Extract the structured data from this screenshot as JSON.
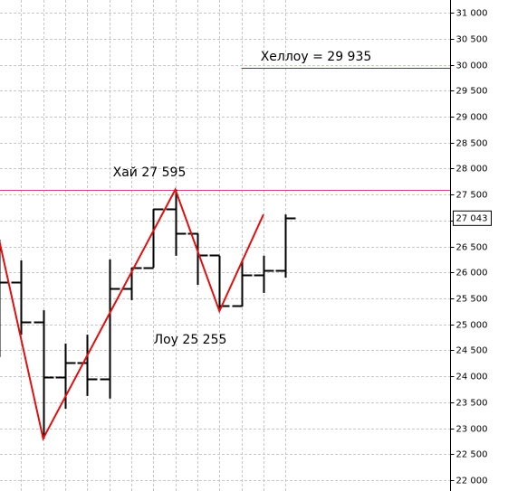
{
  "chart_data": {
    "type": "ohlc",
    "categories": [
      null,
      null,
      null,
      null,
      null,
      null,
      null,
      null,
      null,
      null,
      null,
      null,
      null,
      null
    ],
    "series": [
      {
        "color": "#000000",
        "open": [
          null,
          25810,
          25045,
          23980,
          24260,
          23950,
          25690,
          26090,
          27220,
          26750,
          26335,
          25360,
          25950,
          26035
        ],
        "high": [
          26630,
          26230,
          25270,
          24630,
          24800,
          26250,
          26090,
          27220,
          27595,
          26750,
          26320,
          26230,
          26320,
          27115
        ],
        "low": [
          24370,
          24800,
          22800,
          23375,
          23620,
          23570,
          25465,
          26090,
          26320,
          25760,
          25255,
          25340,
          25605,
          25900
        ],
        "close": [
          25810,
          25045,
          23980,
          24260,
          23950,
          25690,
          26090,
          27220,
          26750,
          26335,
          25360,
          25950,
          26035,
          27043
        ]
      }
    ],
    "zigzag": {
      "color": "#e01010",
      "x": [
        0,
        2,
        8,
        10,
        12
      ],
      "values": [
        26630,
        22800,
        27595,
        25255,
        27115
      ]
    },
    "levels": [
      {
        "value": 27595,
        "color": "#d2408a",
        "from": 0
      },
      {
        "value": 29935,
        "color": "#c0142a",
        "from": 11
      }
    ],
    "annotations": [
      "Хай 27 595",
      "Хеллоу = 29 935",
      "Лоу 25 255"
    ],
    "last_price": {
      "value": 27043,
      "label": "27 043"
    },
    "ylim": [
      21790,
      31245
    ],
    "yticks": [
      {
        "value": 22000,
        "label": "22 000"
      },
      {
        "value": 22500,
        "label": "22 500"
      },
      {
        "value": 23000,
        "label": "23 000"
      },
      {
        "value": 23500,
        "label": "23 500"
      },
      {
        "value": 24000,
        "label": "24 000"
      },
      {
        "value": 24500,
        "label": "24 500"
      },
      {
        "value": 25000,
        "label": "25 000"
      },
      {
        "value": 25500,
        "label": "25 500"
      },
      {
        "value": 26000,
        "label": "26 000"
      },
      {
        "value": 26500,
        "label": "26 500"
      },
      {
        "value": 27000,
        "label": "27 000"
      },
      {
        "value": 27500,
        "label": "27 500"
      },
      {
        "value": 28000,
        "label": "28 000"
      },
      {
        "value": 28500,
        "label": "28 500"
      },
      {
        "value": 29000,
        "label": "29 000"
      },
      {
        "value": 29500,
        "label": "29 500"
      },
      {
        "value": 30000,
        "label": "30 000"
      },
      {
        "value": 30500,
        "label": "30 500"
      },
      {
        "value": 31000,
        "label": "31 000"
      }
    ],
    "grid": true
  }
}
